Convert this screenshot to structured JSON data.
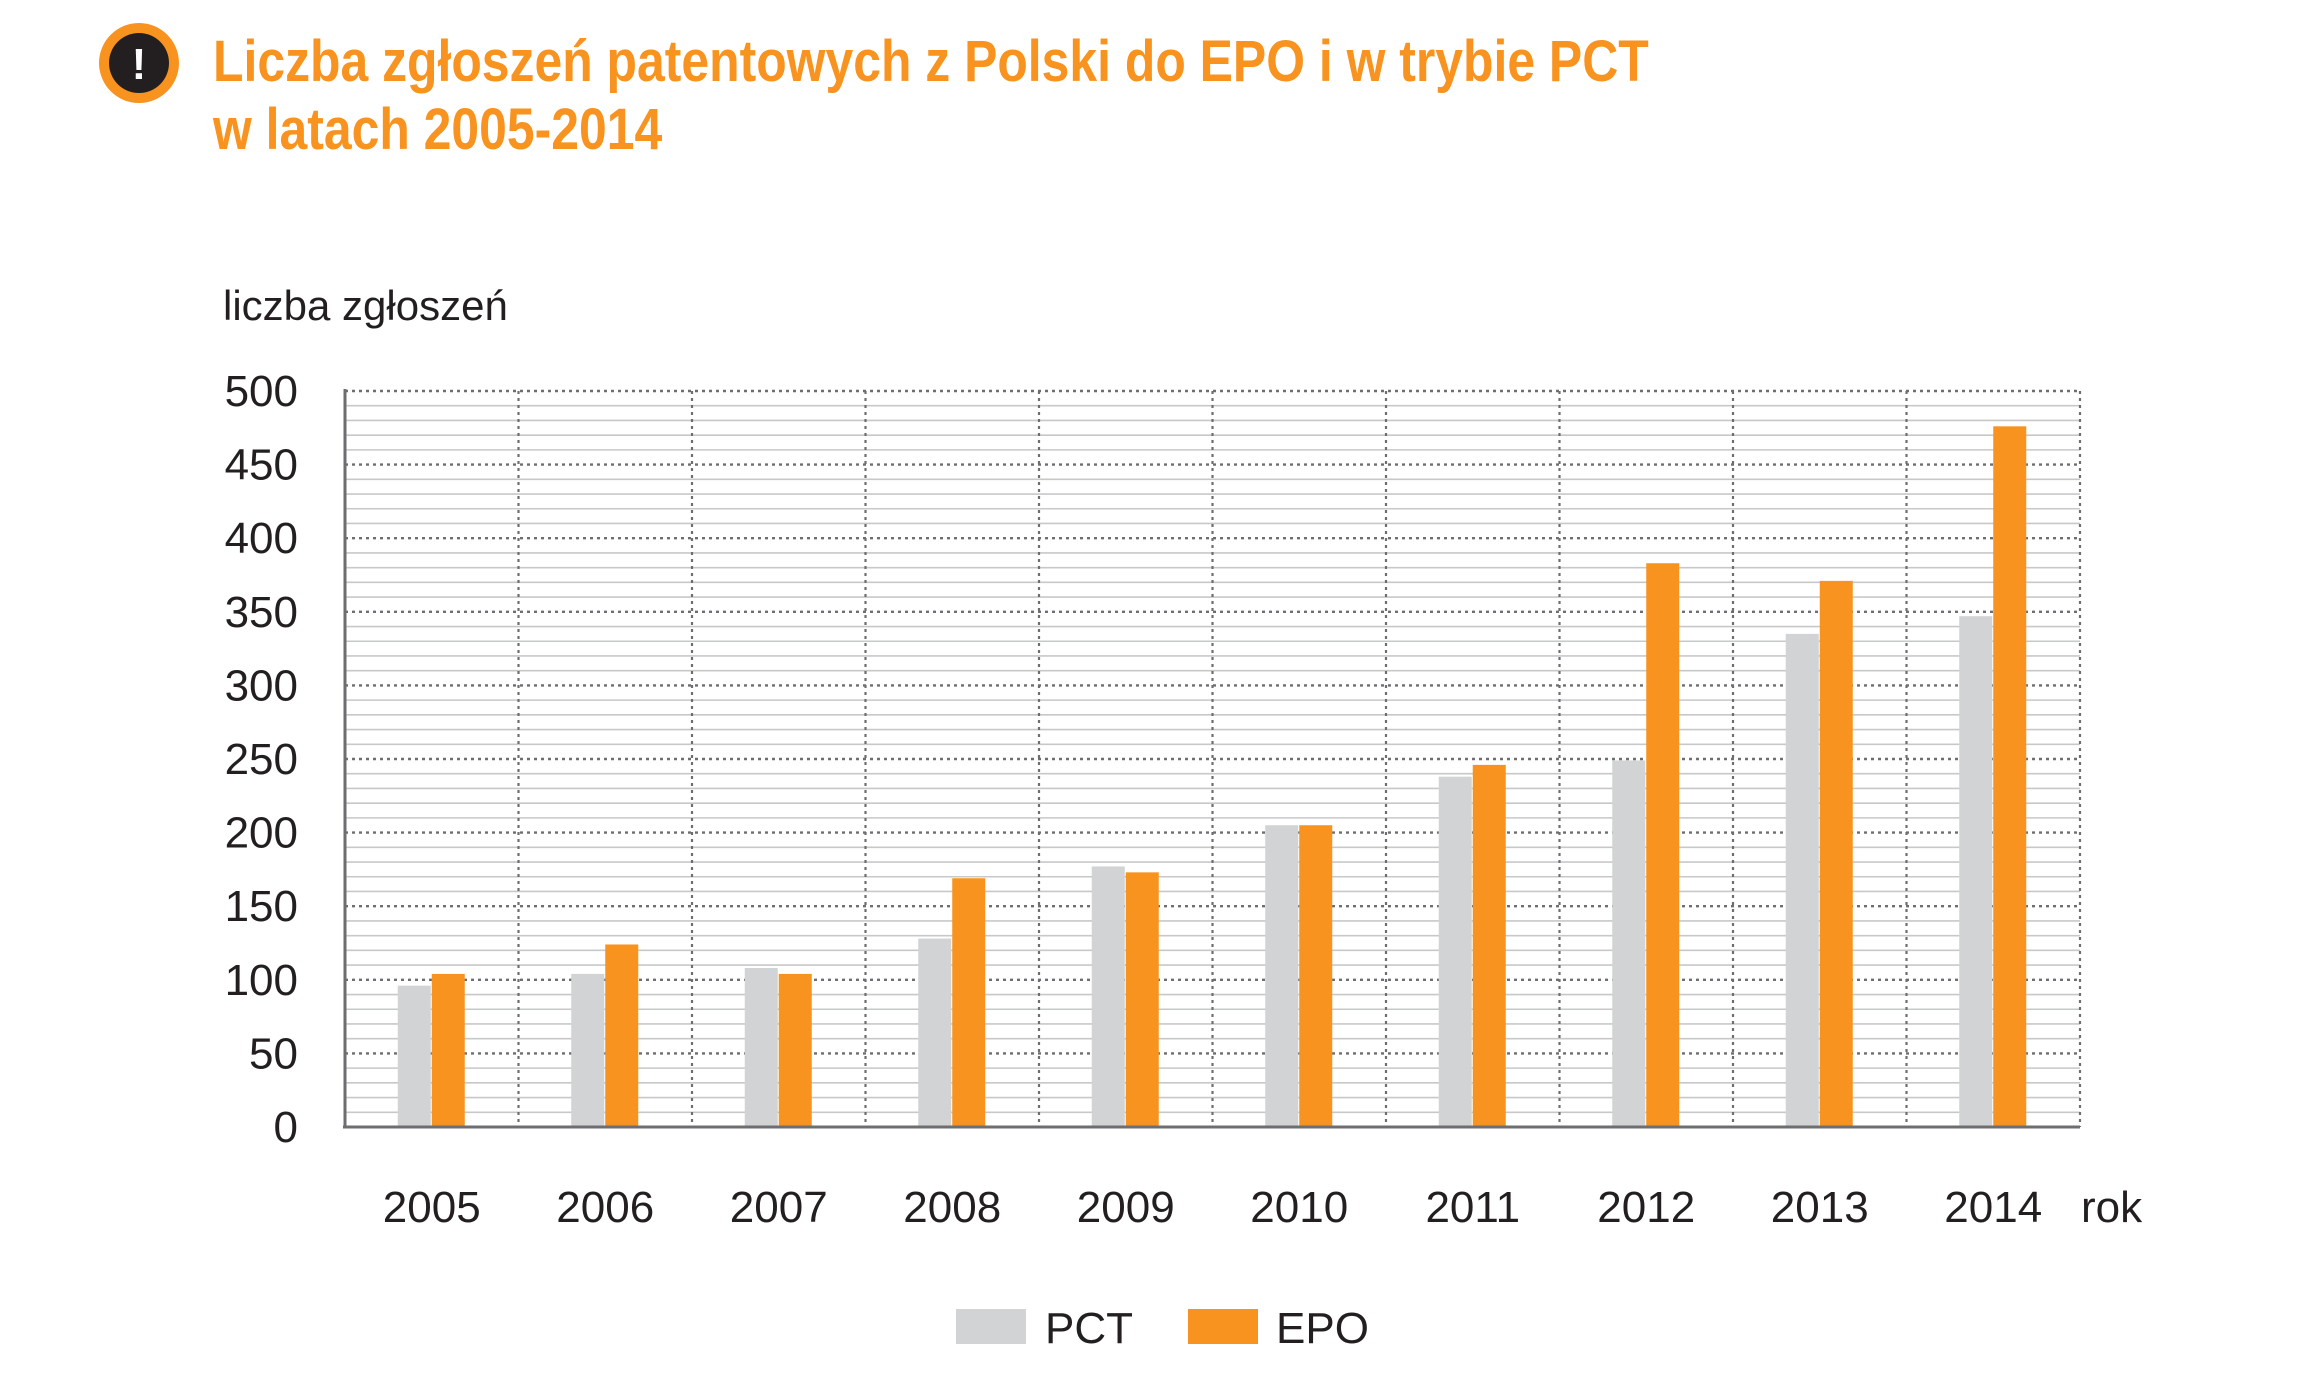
{
  "title": {
    "line1": "Liczba zgłoszeń patentowych z Polski do EPO i w trybie PCT",
    "line2": "w latach 2005-2014"
  },
  "badge": {
    "icon": "exclamation-icon",
    "symbol": "!"
  },
  "colors": {
    "accent": "#f7931e",
    "pct": "#d1d3d4",
    "epo": "#f7931e",
    "grid": "#a7a9ac",
    "axis": "#6d6e71",
    "text": "#231f20"
  },
  "chart_data": {
    "type": "bar",
    "title": "Liczba zgłoszeń patentowych z Polski do EPO i w trybie PCT w latach 2005-2014",
    "ylabel": "liczba zgłoszeń",
    "xlabel": "rok",
    "ylim": [
      0,
      500
    ],
    "yticks": [
      0,
      50,
      100,
      150,
      200,
      250,
      300,
      350,
      400,
      450,
      500
    ],
    "categories": [
      "2005",
      "2006",
      "2007",
      "2008",
      "2009",
      "2010",
      "2011",
      "2012",
      "2013",
      "2014"
    ],
    "series": [
      {
        "name": "PCT",
        "values": [
          96,
          104,
          108,
          128,
          177,
          205,
          238,
          249,
          335,
          347
        ]
      },
      {
        "name": "EPO",
        "values": [
          104,
          124,
          104,
          169,
          173,
          205,
          246,
          383,
          371,
          476
        ]
      }
    ],
    "legend": "bottom-center",
    "grid": true
  }
}
